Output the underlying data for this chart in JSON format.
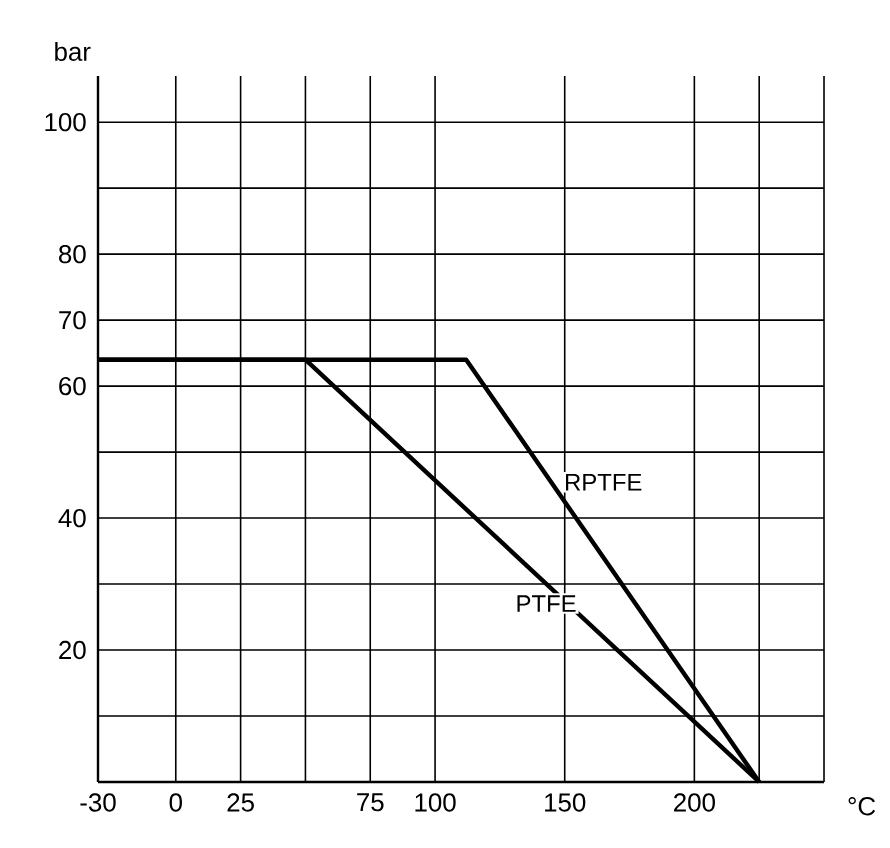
{
  "chart_data": {
    "type": "line",
    "xlabel": "°C",
    "ylabel": "bar",
    "xlim": [
      -30,
      250
    ],
    "ylim": [
      0,
      107
    ],
    "xticks": [
      -30,
      0,
      25,
      {
        "value": 50,
        "label": null
      },
      75,
      100,
      150,
      200,
      {
        "value": 225,
        "label": null
      },
      {
        "value": 250,
        "label": null
      }
    ],
    "yticks": [
      {
        "value": 10,
        "label": null
      },
      20,
      {
        "value": 30,
        "label": null
      },
      40,
      {
        "value": 50,
        "label": null
      },
      60,
      70,
      80,
      {
        "value": 90,
        "label": null
      },
      100
    ],
    "grid": true,
    "marker": "none",
    "line_style": "solid",
    "series": [
      {
        "name": "PTFE",
        "color": "#000000",
        "x": [
          -30,
          50,
          225
        ],
        "values": [
          64,
          64,
          0
        ]
      },
      {
        "name": "RPTFE",
        "color": "#000000",
        "x": [
          -30,
          112,
          225
        ],
        "values": [
          64,
          64,
          0
        ]
      }
    ]
  }
}
